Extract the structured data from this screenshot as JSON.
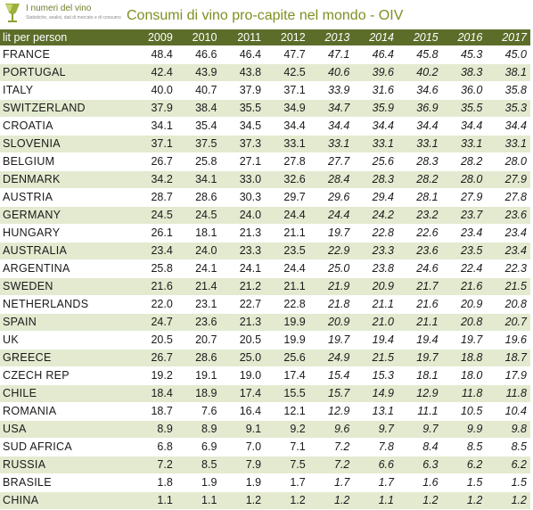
{
  "header": {
    "logo_text": "I numeri del vino",
    "logo_tagline": "Statistiche, analisi, dati di mercato e di consumo",
    "title": "Consumi di vino pro-capite nel mondo - OIV"
  },
  "table": {
    "corner_label": "lit per person",
    "years": [
      "2009",
      "2010",
      "2011",
      "2012",
      "2013",
      "2014",
      "2015",
      "2016",
      "2017"
    ],
    "rows": [
      {
        "country": "FRANCE",
        "values": [
          "48.4",
          "46.6",
          "46.4",
          "47.7",
          "47.1",
          "46.4",
          "45.8",
          "45.3",
          "45.0"
        ]
      },
      {
        "country": "PORTUGAL",
        "values": [
          "42.4",
          "43.9",
          "43.8",
          "42.5",
          "40.6",
          "39.6",
          "40.2",
          "38.3",
          "38.1"
        ]
      },
      {
        "country": "ITALY",
        "values": [
          "40.0",
          "40.7",
          "37.9",
          "37.1",
          "33.9",
          "31.6",
          "34.6",
          "36.0",
          "35.8"
        ]
      },
      {
        "country": "SWITZERLAND",
        "values": [
          "37.9",
          "38.4",
          "35.5",
          "34.9",
          "34.7",
          "35.9",
          "36.9",
          "35.5",
          "35.3"
        ]
      },
      {
        "country": "CROATIA",
        "values": [
          "34.1",
          "35.4",
          "34.5",
          "34.4",
          "34.4",
          "34.4",
          "34.4",
          "34.4",
          "34.4"
        ]
      },
      {
        "country": "SLOVENIA",
        "values": [
          "37.1",
          "37.5",
          "37.3",
          "33.1",
          "33.1",
          "33.1",
          "33.1",
          "33.1",
          "33.1"
        ]
      },
      {
        "country": "BELGIUM",
        "values": [
          "26.7",
          "25.8",
          "27.1",
          "27.8",
          "27.7",
          "25.6",
          "28.3",
          "28.2",
          "28.0"
        ]
      },
      {
        "country": "DENMARK",
        "values": [
          "34.2",
          "34.1",
          "33.0",
          "32.6",
          "28.4",
          "28.3",
          "28.2",
          "28.0",
          "27.9"
        ]
      },
      {
        "country": "AUSTRIA",
        "values": [
          "28.7",
          "28.6",
          "30.3",
          "29.7",
          "29.6",
          "29.4",
          "28.1",
          "27.9",
          "27.8"
        ]
      },
      {
        "country": "GERMANY",
        "values": [
          "24.5",
          "24.5",
          "24.0",
          "24.4",
          "24.4",
          "24.2",
          "23.2",
          "23.7",
          "23.6"
        ]
      },
      {
        "country": "HUNGARY",
        "values": [
          "26.1",
          "18.1",
          "21.3",
          "21.1",
          "19.7",
          "22.8",
          "22.6",
          "23.4",
          "23.4"
        ]
      },
      {
        "country": "AUSTRALIA",
        "values": [
          "23.4",
          "24.0",
          "23.3",
          "23.5",
          "22.9",
          "23.3",
          "23.6",
          "23.5",
          "23.4"
        ]
      },
      {
        "country": "ARGENTINA",
        "values": [
          "25.8",
          "24.1",
          "24.1",
          "24.4",
          "25.0",
          "23.8",
          "24.6",
          "22.4",
          "22.3"
        ]
      },
      {
        "country": "SWEDEN",
        "values": [
          "21.6",
          "21.4",
          "21.2",
          "21.1",
          "21.9",
          "20.9",
          "21.7",
          "21.6",
          "21.5"
        ]
      },
      {
        "country": "NETHERLANDS",
        "values": [
          "22.0",
          "23.1",
          "22.7",
          "22.8",
          "21.8",
          "21.1",
          "21.6",
          "20.9",
          "20.8"
        ]
      },
      {
        "country": "SPAIN",
        "values": [
          "24.7",
          "23.6",
          "21.3",
          "19.9",
          "20.9",
          "21.0",
          "21.1",
          "20.8",
          "20.7"
        ]
      },
      {
        "country": "UK",
        "values": [
          "20.5",
          "20.7",
          "20.5",
          "19.9",
          "19.7",
          "19.4",
          "19.4",
          "19.7",
          "19.6"
        ]
      },
      {
        "country": "GREECE",
        "values": [
          "26.7",
          "28.6",
          "25.0",
          "25.6",
          "24.9",
          "21.5",
          "19.7",
          "18.8",
          "18.7"
        ]
      },
      {
        "country": "CZECH REP",
        "values": [
          "19.2",
          "19.1",
          "19.0",
          "17.4",
          "15.4",
          "15.3",
          "18.1",
          "18.0",
          "17.9"
        ]
      },
      {
        "country": "CHILE",
        "values": [
          "18.4",
          "18.9",
          "17.4",
          "15.5",
          "15.7",
          "14.9",
          "12.9",
          "11.8",
          "11.8"
        ]
      },
      {
        "country": "ROMANIA",
        "values": [
          "18.7",
          "7.6",
          "16.4",
          "12.1",
          "12.9",
          "13.1",
          "11.1",
          "10.5",
          "10.4"
        ]
      },
      {
        "country": "USA",
        "values": [
          "8.9",
          "8.9",
          "9.1",
          "9.2",
          "9.6",
          "9.7",
          "9.7",
          "9.9",
          "9.8"
        ]
      },
      {
        "country": "SUD AFRICA",
        "values": [
          "6.8",
          "6.9",
          "7.0",
          "7.1",
          "7.2",
          "7.8",
          "8.4",
          "8.5",
          "8.5"
        ]
      },
      {
        "country": "RUSSIA",
        "values": [
          "7.2",
          "8.5",
          "7.9",
          "7.5",
          "7.2",
          "6.6",
          "6.3",
          "6.2",
          "6.2"
        ]
      },
      {
        "country": "BRASILE",
        "values": [
          "1.8",
          "1.9",
          "1.9",
          "1.7",
          "1.7",
          "1.7",
          "1.6",
          "1.5",
          "1.5"
        ]
      },
      {
        "country": "CHINA",
        "values": [
          "1.1",
          "1.1",
          "1.2",
          "1.2",
          "1.2",
          "1.1",
          "1.2",
          "1.2",
          "1.2"
        ]
      }
    ]
  },
  "colors": {
    "header_bg": "#5c6d2a",
    "band": "#e3ead0",
    "title": "#7f8f22"
  }
}
